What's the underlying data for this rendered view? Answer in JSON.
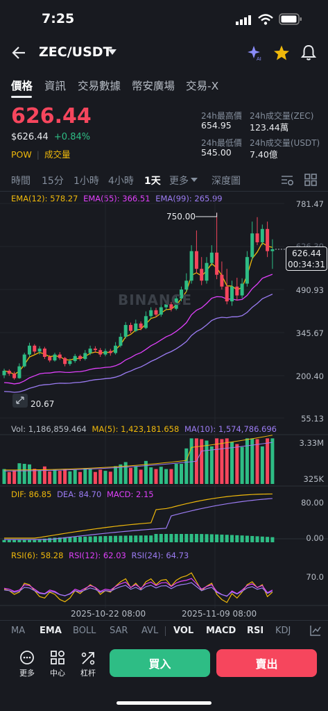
{
  "status": {
    "time": "7:25"
  },
  "header": {
    "title": "ZEC/USDT"
  },
  "tabs": [
    "價格",
    "資訊",
    "交易數據",
    "幣安廣場",
    "交易-X"
  ],
  "price": {
    "last": "626.44",
    "usd": "$626.44",
    "change": "+0.84%",
    "tag1": "POW",
    "tag2": "成交量"
  },
  "stats": {
    "high_label": "24h最高價",
    "high_value": "654.95",
    "vol_coin_label": "24h成交量(ZEC)",
    "vol_coin_value": "123.44萬",
    "low_label": "24h最低價",
    "low_value": "545.00",
    "vol_usdt_label": "24h成交量(USDT)",
    "vol_usdt_value": "7.40億"
  },
  "timeframes": [
    "時間",
    "15分",
    "1小時",
    "4小時",
    "1天",
    "更多",
    "深度圖"
  ],
  "ema": {
    "e12": "EMA(12): 578.27",
    "e55": "EMA(55): 366.51",
    "e99": "EMA(99): 265.99"
  },
  "price_axis": [
    "781.47",
    "626.30",
    "490.93",
    "345.67",
    "200.40",
    "55.13"
  ],
  "markers": {
    "high": "750.00",
    "low": "20.67",
    "current": "626.44",
    "countdown": "00:34:31"
  },
  "watermark": "BINANCE",
  "vol": {
    "label": "Vol: 1,186,859.464",
    "ma5": "MA(5): 1,423,181.658",
    "ma10": "MA(10): 1,574,786.696",
    "axis_top": "3.33M",
    "axis_bot": "325K"
  },
  "macd": {
    "dif": "DIF: 86.85",
    "dea": "DEA: 84.70",
    "macd": "MACD: 2.15",
    "axis_top": "80.00",
    "axis_bot": "0.00"
  },
  "rsi": {
    "r6": "RSI(6): 58.28",
    "r12": "RSI(12): 62.03",
    "r24": "RSI(24): 64.73",
    "axis": "70.0"
  },
  "dates": [
    "2025-10-22 08:00",
    "2025-11-09 08:00"
  ],
  "indicator_tabs": [
    "MA",
    "EMA",
    "BOLL",
    "SAR",
    "AVL",
    "VOL",
    "MACD",
    "RSI",
    "KDJ"
  ],
  "actions": {
    "more": "更多",
    "center": "中心",
    "leverage": "杠杆",
    "buy": "買入",
    "sell": "賣出"
  },
  "colors": {
    "up": "#2ebd85",
    "down": "#f6465d",
    "buy": "#2ebd85",
    "sell": "#f6465d",
    "ema12": "#f0b90b",
    "ema55": "#e040fb",
    "ema99": "#9c7cf4"
  },
  "chart_data": {
    "type": "candlestick",
    "y_axis": [
      781.47,
      626.3,
      490.93,
      345.67,
      200.4,
      55.13
    ],
    "candles": [
      [
        200,
        215,
        190,
        222
      ],
      [
        215,
        205,
        198,
        220
      ],
      [
        205,
        190,
        185,
        212
      ],
      [
        190,
        230,
        188,
        240
      ],
      [
        230,
        270,
        226,
        276
      ],
      [
        270,
        300,
        262,
        310
      ],
      [
        300,
        280,
        272,
        305
      ],
      [
        280,
        290,
        270,
        298
      ],
      [
        290,
        262,
        255,
        296
      ],
      [
        262,
        250,
        244,
        268
      ],
      [
        250,
        270,
        246,
        276
      ],
      [
        270,
        258,
        252,
        278
      ],
      [
        258,
        238,
        230,
        262
      ],
      [
        238,
        248,
        232,
        256
      ],
      [
        248,
        265,
        242,
        272
      ],
      [
        265,
        255,
        248,
        270
      ],
      [
        255,
        275,
        250,
        285
      ],
      [
        275,
        290,
        268,
        300
      ],
      [
        290,
        285,
        276,
        298
      ],
      [
        285,
        270,
        262,
        292
      ],
      [
        270,
        282,
        264,
        290
      ],
      [
        282,
        275,
        266,
        289
      ],
      [
        275,
        300,
        270,
        312
      ],
      [
        300,
        330,
        294,
        342
      ],
      [
        330,
        370,
        324,
        380
      ],
      [
        370,
        350,
        342,
        378
      ],
      [
        350,
        375,
        346,
        388
      ],
      [
        375,
        360,
        352,
        382
      ],
      [
        360,
        400,
        356,
        416
      ],
      [
        400,
        420,
        392,
        430
      ],
      [
        420,
        405,
        396,
        428
      ],
      [
        405,
        430,
        398,
        438
      ],
      [
        430,
        440,
        420,
        452
      ],
      [
        440,
        425,
        416,
        448
      ],
      [
        425,
        460,
        420,
        470
      ],
      [
        460,
        490,
        450,
        500
      ],
      [
        490,
        520,
        482,
        545
      ],
      [
        520,
        620,
        510,
        640
      ],
      [
        620,
        560,
        545,
        690
      ],
      [
        560,
        520,
        505,
        600
      ],
      [
        520,
        580,
        510,
        600
      ],
      [
        580,
        615,
        570,
        640
      ],
      [
        615,
        540,
        525,
        750
      ],
      [
        540,
        500,
        490,
        585
      ],
      [
        500,
        450,
        440,
        560
      ],
      [
        450,
        500,
        435,
        520
      ],
      [
        500,
        470,
        452,
        530
      ],
      [
        470,
        510,
        460,
        528
      ],
      [
        510,
        600,
        500,
        620
      ],
      [
        600,
        680,
        590,
        720
      ],
      [
        680,
        650,
        640,
        735
      ],
      [
        650,
        695,
        640,
        710
      ],
      [
        695,
        620,
        600,
        720
      ],
      [
        620,
        626.44,
        560,
        660
      ]
    ],
    "volume_y_range": [
      325000,
      3330000
    ],
    "macd_y_range": [
      0,
      80
    ],
    "rsi_level": 70.0,
    "x_labels": [
      "2025-10-22 08:00",
      "2025-11-09 08:00"
    ]
  }
}
